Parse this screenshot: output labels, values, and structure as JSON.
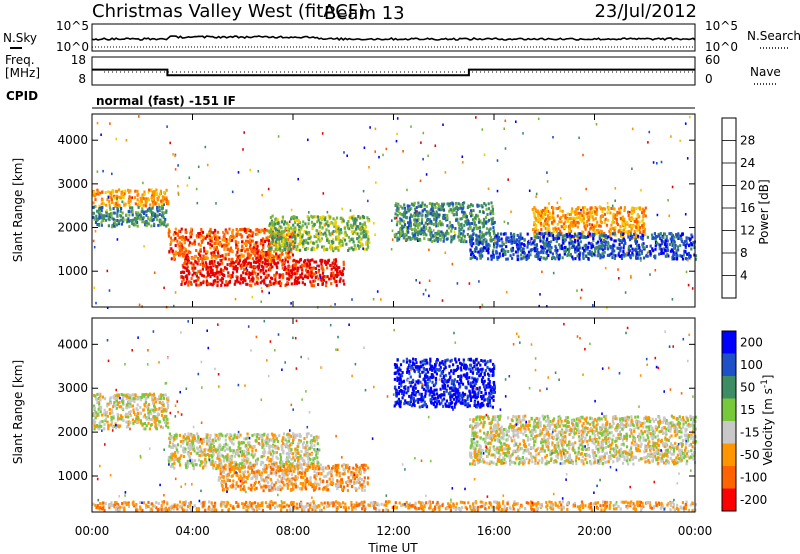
{
  "header": {
    "station": "Christmas Valley West (fitACF)",
    "beam": "Beam 13",
    "date": "23/Jul/2012"
  },
  "labels": {
    "nsky": "N.Sky",
    "nsearch": "N.Search",
    "freq_line1": "Freq.",
    "freq_line2": "[MHz]",
    "nave": "Nave",
    "cpid": "CPID",
    "cpid_value": "normal (fast) -151 IF",
    "xlabel": "Time UT"
  },
  "noise_panel": {
    "left_ticks": [
      "10^5",
      "10^0"
    ],
    "right_ticks": [
      "10^5",
      "10^0"
    ]
  },
  "freq_panel": {
    "left_ticks": [
      18,
      8
    ],
    "right_ticks": [
      60,
      0
    ],
    "freq_segments": [
      [
        0,
        3,
        13.5
      ],
      [
        3,
        15,
        11.5
      ],
      [
        15,
        24,
        13.5
      ]
    ]
  },
  "chart_data": [
    {
      "type": "heatmap",
      "name_label": "Power",
      "colorbar_label": "Power [dB]",
      "colorbar_ticks": [
        4,
        8,
        12,
        16,
        20,
        24,
        28
      ],
      "colorbar_colors": [
        "#0000ff",
        "#1e50c8",
        "#3c8c64",
        "#78b43c",
        "#f0d000",
        "#ff9600",
        "#ff5a00",
        "#e60000"
      ],
      "ylabel": "Slant Range [km]",
      "yticks": [
        1000,
        2000,
        3000,
        4000
      ],
      "ylim": [
        180,
        4600
      ],
      "xticks": [
        "00:00",
        "04:00",
        "08:00",
        "12:00",
        "16:00",
        "20:00",
        "00:00"
      ],
      "xlim_hours": [
        0,
        24
      ],
      "regions": [
        {
          "t": [
            0,
            3
          ],
          "r": [
            2500,
            2900
          ],
          "level": 5
        },
        {
          "t": [
            0,
            3
          ],
          "r": [
            2050,
            2500
          ],
          "level": 2
        },
        {
          "t": [
            3,
            8
          ],
          "r": [
            1300,
            2000
          ],
          "level": 6
        },
        {
          "t": [
            3.5,
            10
          ],
          "r": [
            700,
            1300
          ],
          "level": 7
        },
        {
          "t": [
            7,
            11
          ],
          "r": [
            1500,
            2300
          ],
          "level": 3
        },
        {
          "t": [
            12,
            16
          ],
          "r": [
            1700,
            2600
          ],
          "level": 2
        },
        {
          "t": [
            17.5,
            22
          ],
          "r": [
            1800,
            2500
          ],
          "level": 5
        },
        {
          "t": [
            15,
            24
          ],
          "r": [
            1300,
            1900
          ],
          "level": 1
        }
      ]
    },
    {
      "type": "heatmap",
      "name_label": "Velocity",
      "colorbar_label": "Velocity [m s^-1]",
      "colorbar_ticks": [
        200,
        100,
        50,
        15,
        -15,
        -50,
        -100,
        -200
      ],
      "colorbar_colors": [
        "#0000ff",
        "#1e50c8",
        "#3c8c64",
        "#78c83c",
        "#c8c8c8",
        "#ff9600",
        "#ff6400",
        "#ff0000"
      ],
      "ylabel": "Slant Range [km]",
      "yticks": [
        1000,
        2000,
        3000,
        4000
      ],
      "ylim": [
        180,
        4600
      ],
      "xticks": [
        "00:00",
        "04:00",
        "08:00",
        "12:00",
        "16:00",
        "20:00",
        "00:00"
      ],
      "xlim_hours": [
        0,
        24
      ],
      "regions": [
        {
          "t": [
            0,
            3
          ],
          "r": [
            2100,
            2900
          ],
          "level": 4
        },
        {
          "t": [
            3,
            9
          ],
          "r": [
            1200,
            2000
          ],
          "level": 4
        },
        {
          "t": [
            5,
            11
          ],
          "r": [
            700,
            1300
          ],
          "level": 5
        },
        {
          "t": [
            12,
            16
          ],
          "r": [
            2600,
            3700
          ],
          "level": 0
        },
        {
          "t": [
            15,
            24
          ],
          "r": [
            1300,
            2400
          ],
          "level": 4
        },
        {
          "t": [
            0,
            24
          ],
          "r": [
            250,
            450
          ],
          "level": 5
        }
      ]
    }
  ]
}
